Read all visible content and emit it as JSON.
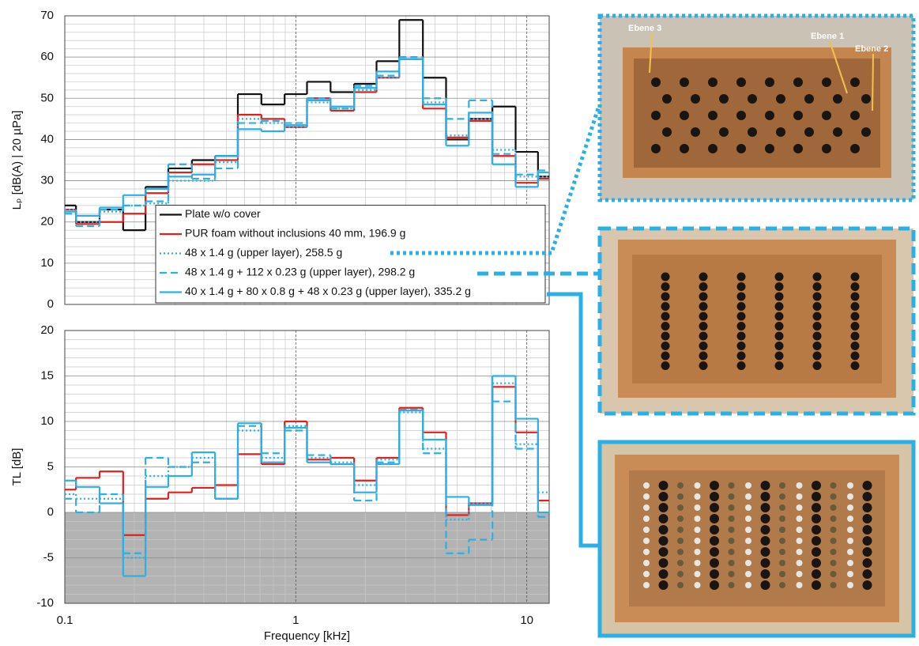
{
  "chart_data": [
    {
      "type": "step",
      "ylabel": "Lₚ [dB(A) | 20 µPa]",
      "log_x": true,
      "grid": true,
      "minor_grid": true,
      "show_xtick_labels": false,
      "legend": "lower right",
      "x": [
        0.1,
        0.125,
        0.16,
        0.2,
        0.25,
        0.315,
        0.4,
        0.5,
        0.63,
        0.8,
        1,
        1.25,
        1.6,
        2,
        2.5,
        3.15,
        4,
        5,
        6.3,
        8,
        10,
        12.5
      ],
      "xlim": [
        0.1,
        12.5
      ],
      "xticks": [
        0.1,
        1,
        10
      ],
      "ylim": [
        0,
        70
      ],
      "yticks": [
        0,
        10,
        20,
        30,
        40,
        50,
        60,
        70
      ],
      "series": [
        {
          "name": "Plate w/o cover",
          "color": "#111111",
          "dash": "solid",
          "values": [
            24,
            20,
            23,
            18,
            28.5,
            33,
            35,
            36,
            51,
            48.5,
            51,
            54,
            51.5,
            53.5,
            59,
            69,
            55,
            40,
            45,
            48,
            37,
            31
          ]
        },
        {
          "name": "PUR foam without inclusions 40 mm, 196.9 g",
          "color": "#e0201b",
          "dash": "solid",
          "values": [
            23,
            19.5,
            20,
            22,
            27,
            32,
            34,
            35,
            46,
            45,
            43,
            50,
            47,
            51.5,
            55,
            59.5,
            47.5,
            40.5,
            44.5,
            36,
            29.5,
            30.5
          ]
        },
        {
          "name": "48 x 1.4 g (upper layer), 258.5 g",
          "color": "#2ab0e4",
          "dash": "dotted",
          "values": [
            23,
            20,
            22.5,
            24,
            24.5,
            30,
            30,
            34.5,
            45,
            44,
            43,
            49,
            47.5,
            52,
            55,
            59.5,
            49,
            41,
            45,
            37.5,
            31,
            31
          ]
        },
        {
          "name": "48 x 1.4 g + 112 x 0.23 g (upper layer), 298.2 g",
          "color": "#2ab0e4",
          "dash": "dashed",
          "values": [
            22,
            19,
            23,
            24,
            25,
            34,
            30.5,
            33,
            44,
            44.5,
            44,
            50,
            47.5,
            53,
            55.5,
            60,
            50,
            45,
            49.5,
            36.5,
            31.5,
            32.5
          ]
        },
        {
          "name": "40 x 1.4 g + 80 x 0.8 g + 48 x 0.23 g (upper layer), 335.2 g",
          "color": "#2ab0e4",
          "dash": "solid",
          "values": [
            22.5,
            21.5,
            23.5,
            26.5,
            28,
            31,
            31.5,
            36,
            42.5,
            42,
            43.5,
            49.5,
            48,
            52.5,
            56.5,
            59.5,
            48.5,
            38.5,
            46.5,
            34,
            28.5,
            32
          ]
        }
      ]
    },
    {
      "type": "step",
      "ylabel": "TL [dB]",
      "xlabel": "Frequency [kHz]",
      "log_x": true,
      "grid": true,
      "minor_grid": true,
      "show_xtick_labels": true,
      "shade_below_zero": true,
      "x": [
        0.1,
        0.125,
        0.16,
        0.2,
        0.25,
        0.315,
        0.4,
        0.5,
        0.63,
        0.8,
        1,
        1.25,
        1.6,
        2,
        2.5,
        3.15,
        4,
        5,
        6.3,
        8,
        10,
        12.5
      ],
      "xlim": [
        0.1,
        12.5
      ],
      "xticks": [
        0.1,
        1,
        10
      ],
      "ylim": [
        -10,
        20
      ],
      "yticks": [
        -10,
        -5,
        0,
        5,
        10,
        15,
        20
      ],
      "series": [
        {
          "color": "#e0201b",
          "dash": "solid",
          "values": [
            2.5,
            3.8,
            4.5,
            -2.5,
            1.5,
            2.2,
            2.7,
            3,
            6.4,
            5.3,
            10,
            5.8,
            6,
            3.5,
            6,
            11.5,
            8.8,
            -0.3,
            1,
            13.8,
            8.8,
            1.3
          ]
        },
        {
          "color": "#2ab0e4",
          "dash": "dotted",
          "values": [
            2,
            1.5,
            1.5,
            -5,
            4,
            5,
            6,
            1.5,
            9,
            6,
            9.5,
            6,
            5.5,
            3,
            5.8,
            11,
            7,
            -0.8,
            1,
            14.2,
            7.5,
            2.2
          ]
        },
        {
          "color": "#2ab0e4",
          "dash": "dashed",
          "values": [
            1.5,
            0,
            2,
            -4.5,
            6,
            5,
            5.5,
            1.5,
            9.5,
            6.5,
            9,
            6.3,
            5.3,
            1.3,
            5.5,
            11.3,
            6.5,
            -4.5,
            -3,
            12.2,
            7,
            -0.5
          ]
        },
        {
          "color": "#2ab0e4",
          "dash": "solid",
          "values": [
            3.5,
            2.8,
            1,
            -7,
            2.8,
            4,
            6.6,
            1.5,
            9.8,
            5.5,
            9.3,
            5.5,
            5.3,
            2.2,
            5.3,
            11.2,
            8,
            1.7,
            0.8,
            15,
            10.3,
            0
          ]
        }
      ]
    }
  ],
  "photos": {
    "labels": [
      "Ebene 3",
      "Ebene 1",
      "Ebene 2"
    ]
  }
}
